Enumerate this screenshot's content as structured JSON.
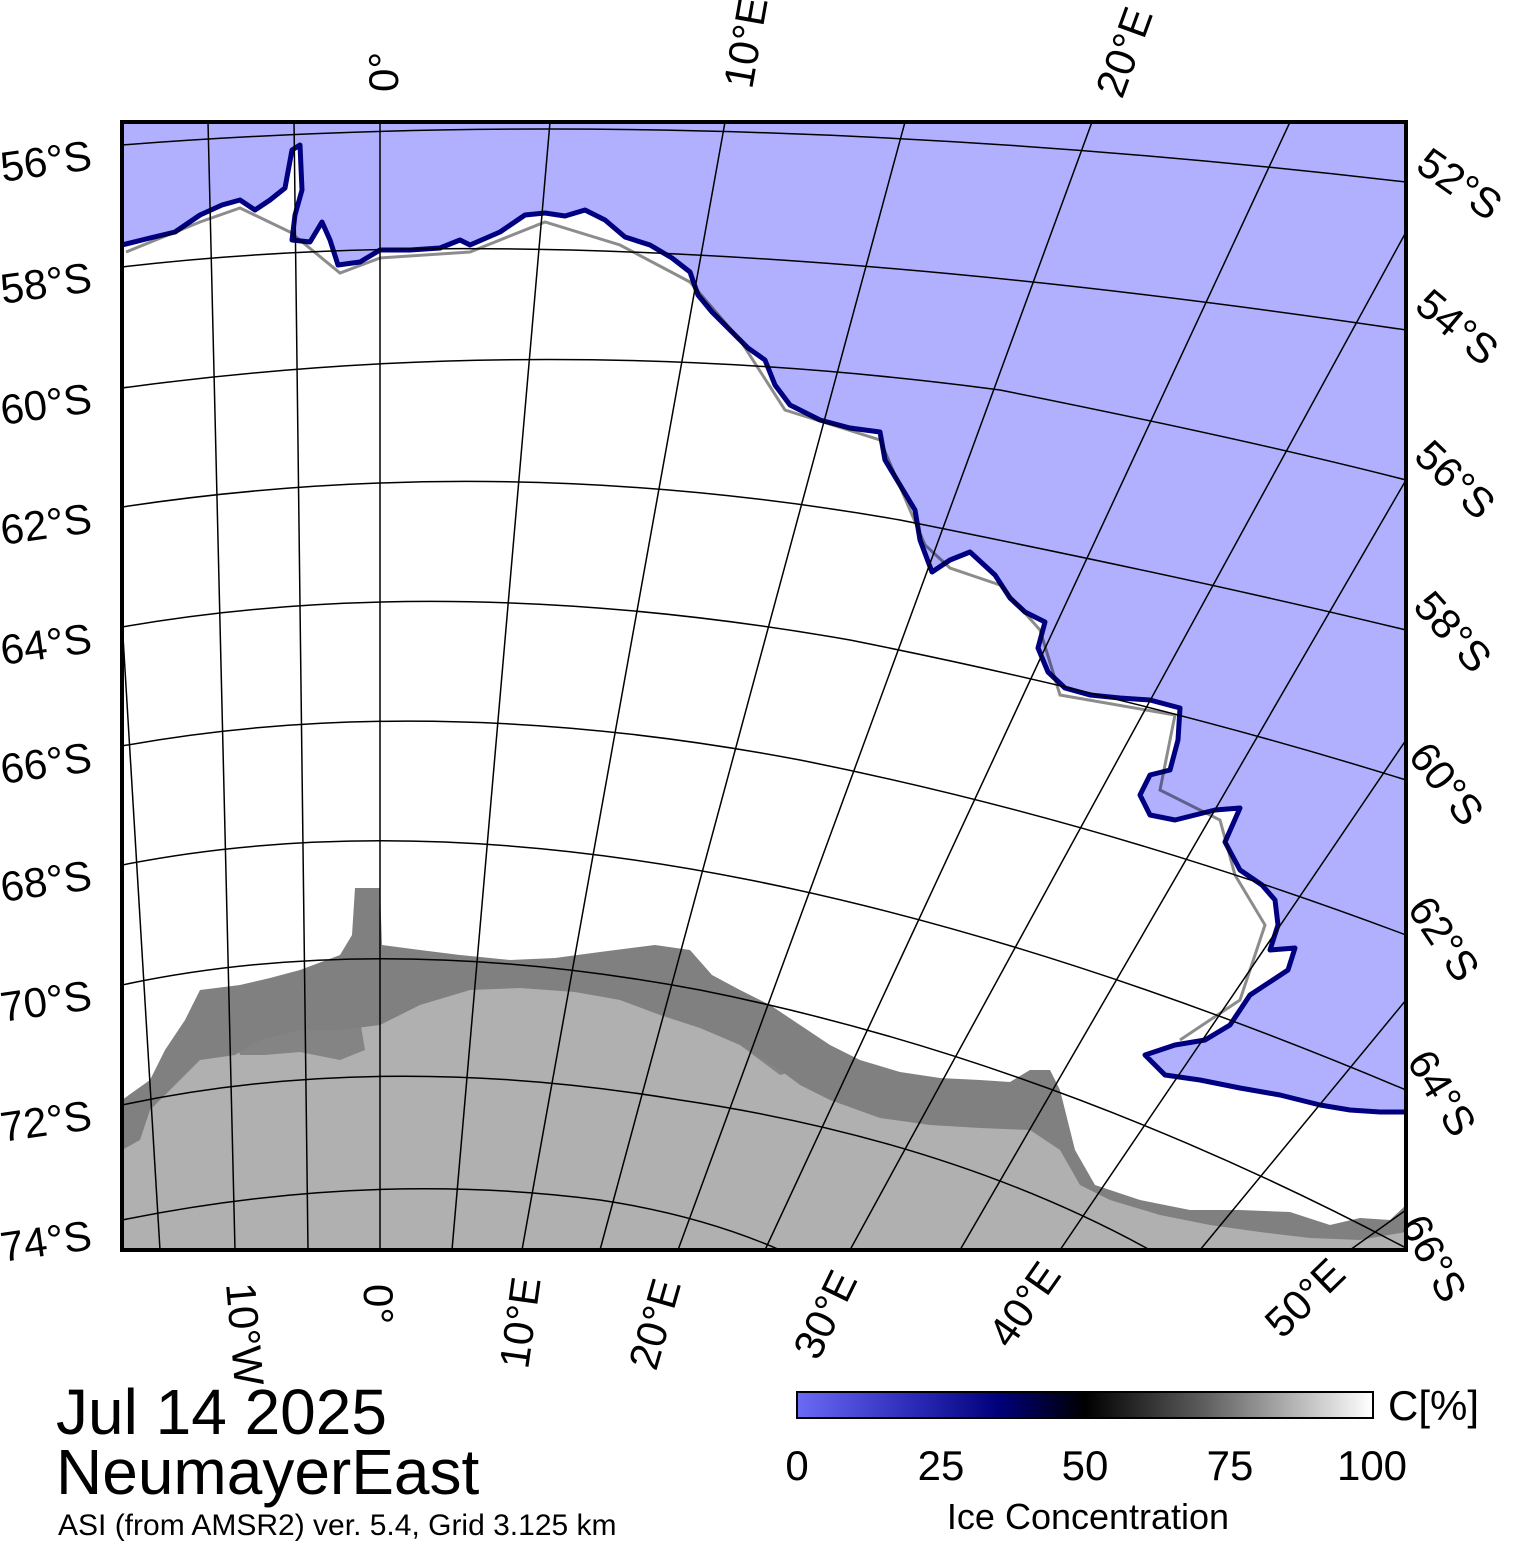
{
  "map": {
    "lat_labels_left": [
      "56°S",
      "58°S",
      "60°S",
      "62°S",
      "64°S",
      "66°S",
      "68°S",
      "70°S",
      "72°S",
      "74°S"
    ],
    "lat_labels_right": [
      "52°S",
      "54°S",
      "56°S",
      "58°S",
      "60°S",
      "62°S",
      "64°S",
      "66°S"
    ],
    "lon_labels_top": [
      "0°",
      "10°E",
      "20°E"
    ],
    "lon_labels_bottom": [
      "10°W",
      "0°",
      "10°E",
      "20°E",
      "30°E",
      "40°E",
      "50°E"
    ],
    "colors": {
      "open_water": "#b0b0ff",
      "ice": "#ffffff",
      "ice_shelf": "#808080",
      "land": "#b0b0b0",
      "ice_edge": "#000080"
    }
  },
  "title": {
    "date": "Jul 14 2025",
    "region": "NeumayerEast",
    "source": "ASI (from AMSR2) ver. 5.4,  Grid 3.125 km"
  },
  "colorbar": {
    "unit": "C[%]",
    "ticks": [
      "0",
      "25",
      "50",
      "75",
      "100"
    ],
    "title": "Ice Concentration",
    "range": [
      0,
      100
    ]
  }
}
